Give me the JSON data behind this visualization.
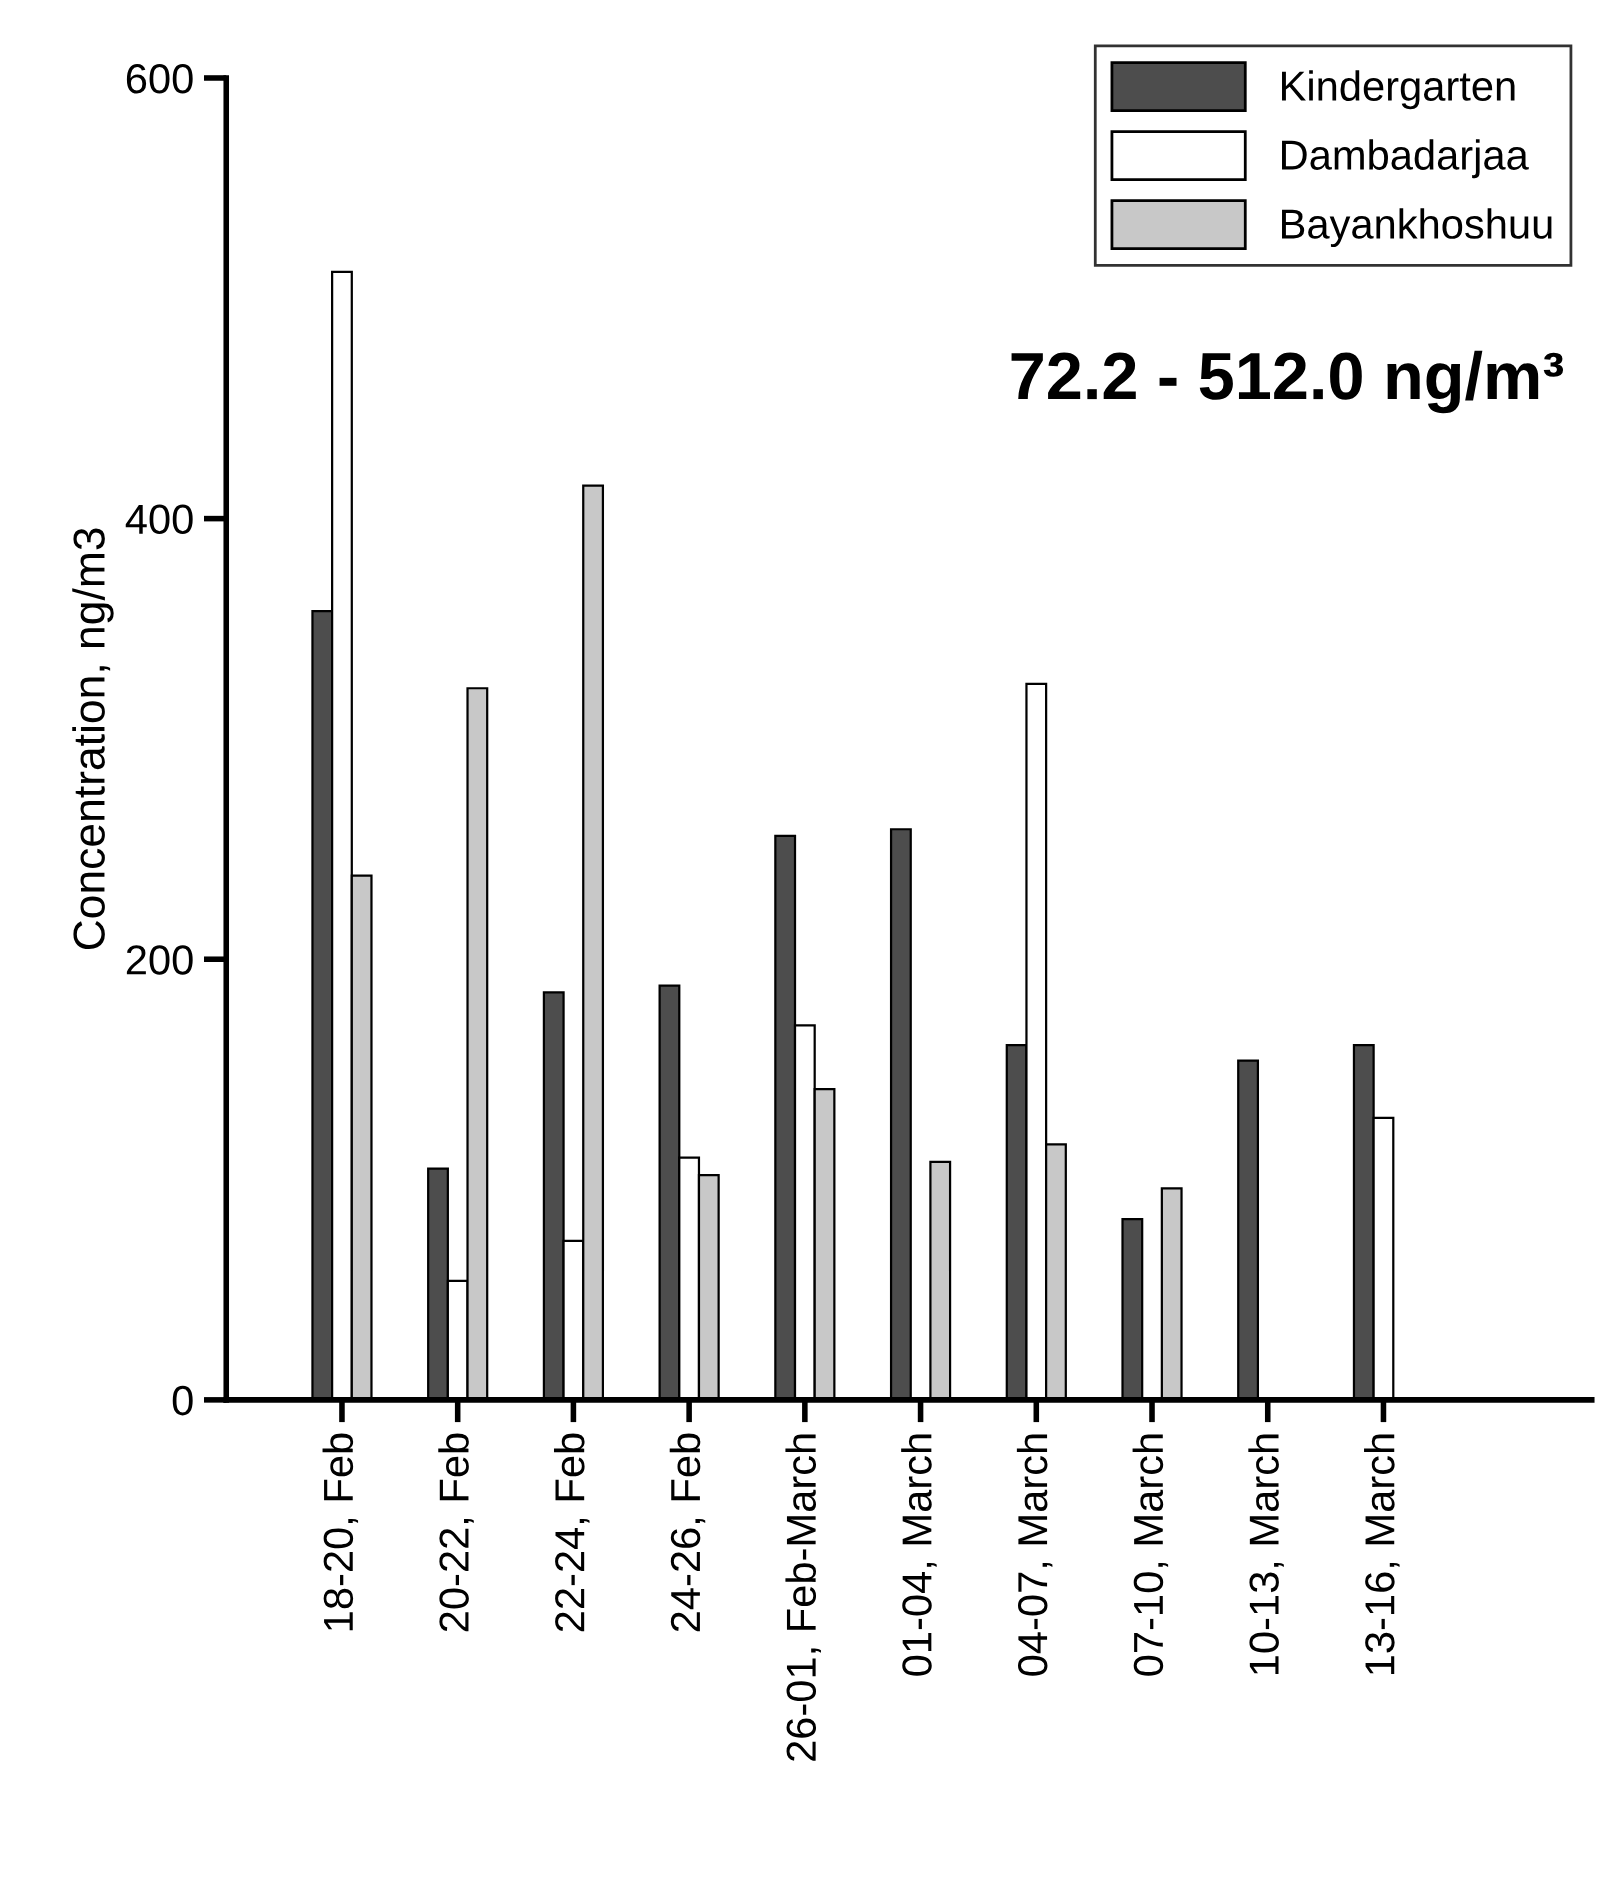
{
  "chart_data": {
    "type": "bar",
    "ylabel": "Concentration, ng/m3",
    "categories": [
      "18-20, Feb",
      "20-22, Feb",
      "22-24, Feb",
      "24-26, Feb",
      "26-01, Feb-March",
      "01-04, March",
      "04-07, March",
      "07-10, March",
      "10-13, March",
      "13-16, March"
    ],
    "series": [
      {
        "name": "Kindergarten",
        "color": "#4d4d4d",
        "values": [
          358,
          105,
          185,
          188,
          256,
          259,
          161,
          82,
          154,
          161
        ]
      },
      {
        "name": "Dambadarjaa",
        "color": "#ffffff",
        "values": [
          512,
          54,
          72.2,
          110,
          170,
          null,
          325,
          null,
          null,
          128
        ]
      },
      {
        "name": "Bayankhoshuu",
        "color": "#c8c8c8",
        "values": [
          238,
          323,
          415,
          102,
          141,
          108,
          116,
          96,
          null,
          null
        ]
      }
    ],
    "ylim": [
      0,
      600
    ],
    "yticks": [
      0,
      200,
      400,
      600
    ],
    "annotations": [
      "72.2 - 512.0 ng/m³"
    ],
    "legend": "top right",
    "grid": false
  }
}
